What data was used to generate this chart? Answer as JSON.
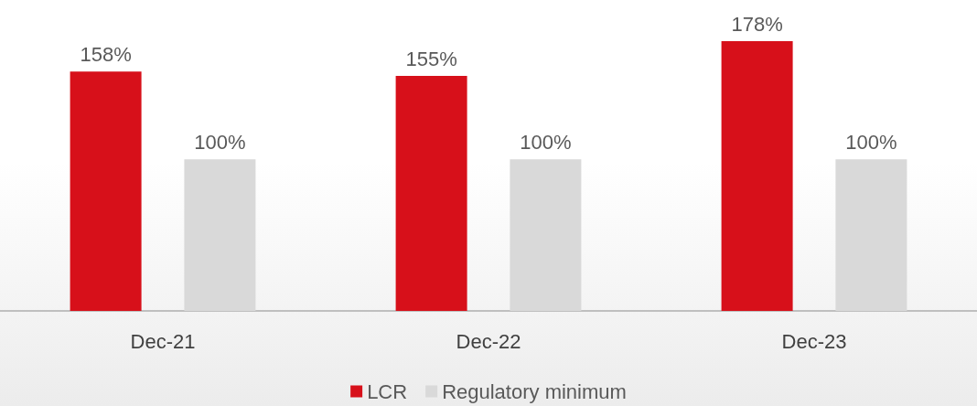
{
  "chart_data": {
    "type": "bar",
    "categories": [
      "Dec-21",
      "Dec-22",
      "Dec-23"
    ],
    "series": [
      {
        "name": "LCR",
        "color": "#d7101a",
        "values": [
          158,
          155,
          178
        ],
        "value_labels": [
          "158%",
          "155%",
          "178%"
        ]
      },
      {
        "name": "Regulatory minimum",
        "color": "#d9d9d9",
        "values": [
          100,
          100,
          100
        ],
        "value_labels": [
          "100%",
          "100%",
          "100%"
        ]
      }
    ],
    "legend": "bottom"
  }
}
